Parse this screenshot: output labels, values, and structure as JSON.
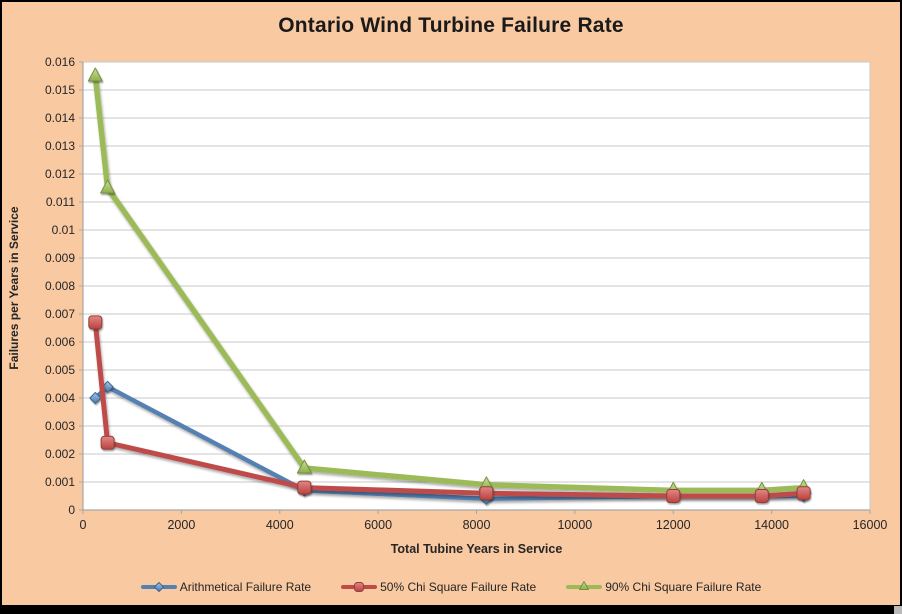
{
  "window": {
    "background_color": "#F9C9A2",
    "border_color": "#000000",
    "plot_background": "#ffffff",
    "gridline_color": "#C9C9C9",
    "axis_color": "#A6A6A6",
    "text_color": "#262626"
  },
  "chart_data": {
    "type": "line",
    "title": "Ontario Wind Turbine Failure Rate",
    "xlabel": "Total Tubine Years in Service",
    "ylabel": "Failures per Years in Service",
    "xlim": [
      0,
      16000
    ],
    "ylim": [
      0,
      0.016
    ],
    "x_tick_labels": [
      "0",
      "2000",
      "4000",
      "6000",
      "8000",
      "10000",
      "12000",
      "14000",
      "16000"
    ],
    "y_tick_labels": [
      "0",
      "0.001",
      "0.002",
      "0.003",
      "0.004",
      "0.005",
      "0.006",
      "0.007",
      "0.008",
      "0.009",
      "0.01",
      "0.011",
      "0.012",
      "0.013",
      "0.014",
      "0.015",
      "0.016"
    ],
    "grid": "horizontal",
    "legend_position": "bottom",
    "x": [
      250,
      500,
      4500,
      8200,
      12000,
      13800,
      14650
    ],
    "series": [
      {
        "name": "Arithmetical Failure Rate",
        "marker": "diamond",
        "color": "#5580B2",
        "stroke_dark": "#3A6591",
        "fill_light": "#A4C6EE",
        "fill_dark": "#4C77AB",
        "line_width": 4.5,
        "marker_size": 11,
        "values": [
          0.004,
          0.0044,
          0.0007,
          0.0004,
          0.0005,
          0.0005,
          0.0005
        ]
      },
      {
        "name": "50% Chi Square Failure Rate",
        "marker": "square",
        "color": "#BE4B48",
        "stroke_dark": "#943D3A",
        "fill_light": "#E28784",
        "fill_dark": "#BA433F",
        "line_width": 5,
        "marker_size": 13,
        "values": [
          0.0067,
          0.0024,
          0.0008,
          0.0006,
          0.0005,
          0.0005,
          0.0006
        ]
      },
      {
        "name": "90% Chi Square Failure Rate",
        "marker": "triangle",
        "color": "#9CBB58",
        "stroke_dark": "#74923C",
        "fill_light": "#C9E097",
        "fill_dark": "#8FAE4B",
        "line_width": 5.5,
        "marker_size": 14,
        "values": [
          0.0155,
          0.0115,
          0.0015,
          0.0009,
          0.0007,
          0.0007,
          0.0008
        ]
      }
    ],
    "draw_order": [
      0,
      2,
      1
    ]
  }
}
